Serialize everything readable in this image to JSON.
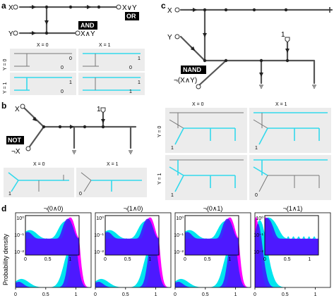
{
  "panels": {
    "a": "a",
    "b": "b",
    "c": "c",
    "d": "d"
  },
  "panel_a": {
    "input_x": "X",
    "input_y": "Y",
    "out_or": "X∨Y",
    "out_and": "X∧Y",
    "gate_and": "AND",
    "gate_or": "OR",
    "col_x0": "X = 0",
    "col_x1": "X = 1",
    "row_y0": "Y = 0",
    "row_y1": "Y = 1",
    "cells": [
      {
        "o1": "0",
        "o2": "0"
      },
      {
        "o1": "1",
        "o2": "0"
      },
      {
        "o1": "1",
        "o2": "0"
      },
      {
        "o1": "1",
        "o2": "1"
      }
    ]
  },
  "panel_b": {
    "input_x": "X",
    "const_one": "1",
    "out": "¬X",
    "gate": "NOT",
    "col_x0": "X = 0",
    "col_x1": "X = 1",
    "cell_in": [
      "1",
      "0"
    ]
  },
  "panel_c": {
    "input_x": "X",
    "input_y": "Y",
    "const_one": "1",
    "out": "¬(X∧Y)",
    "gate": "NAND",
    "col_x0": "X = 0",
    "col_x1": "X = 1",
    "row_y0": "Y = 0",
    "row_y1": "Y = 1",
    "cell_out": [
      "1",
      "1",
      "1",
      "0"
    ]
  },
  "panel_d": {
    "ylabel": "Probability density",
    "titles": [
      "¬(0∧0)",
      "¬(1∧0)",
      "¬(0∧1)",
      "¬(1∧1)"
    ],
    "x_ticks": [
      "0",
      "0.5",
      "1"
    ],
    "inset_x_ticks": [
      "0",
      "0.5",
      "1"
    ],
    "inset_y_ticks": [
      "10⁰",
      "10⁻¹",
      "10⁻²"
    ]
  },
  "colors": {
    "wire": "#555555",
    "active": "#33d9ec",
    "magenta": "#ff00ff",
    "blue": "#3a1cff",
    "cyan": "#00e5ee",
    "panel_bg": "#ececec"
  }
}
